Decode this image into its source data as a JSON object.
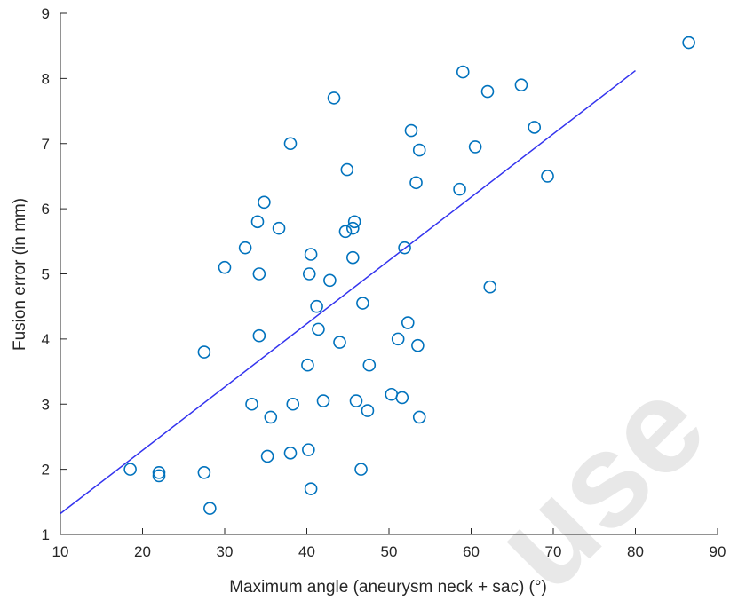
{
  "chart_data": {
    "type": "scatter",
    "xlabel": "Maximum angle (aneurysm neck + sac) (°)",
    "ylabel": "Fusion error (in mm)",
    "xlim": [
      10,
      90
    ],
    "ylim": [
      1,
      9
    ],
    "xticks": [
      "10",
      "20",
      "30",
      "40",
      "50",
      "60",
      "70",
      "80",
      "90"
    ],
    "yticks": [
      "1",
      "2",
      "3",
      "4",
      "5",
      "6",
      "7",
      "8",
      "9"
    ],
    "grid": false,
    "legend": "none",
    "marker_color": "#0072BD",
    "line_color": "#3333EE",
    "points": [
      {
        "x": 18.5,
        "y": 2.0
      },
      {
        "x": 22.0,
        "y": 1.95
      },
      {
        "x": 22.0,
        "y": 1.9
      },
      {
        "x": 27.5,
        "y": 1.95
      },
      {
        "x": 27.5,
        "y": 3.8
      },
      {
        "x": 28.2,
        "y": 1.4
      },
      {
        "x": 30.0,
        "y": 5.1
      },
      {
        "x": 32.5,
        "y": 5.4
      },
      {
        "x": 33.3,
        "y": 3.0
      },
      {
        "x": 34.0,
        "y": 5.8
      },
      {
        "x": 34.2,
        "y": 5.0
      },
      {
        "x": 34.2,
        "y": 4.05
      },
      {
        "x": 34.8,
        "y": 6.1
      },
      {
        "x": 35.2,
        "y": 2.2
      },
      {
        "x": 35.6,
        "y": 2.8
      },
      {
        "x": 36.6,
        "y": 5.7
      },
      {
        "x": 38.0,
        "y": 7.0
      },
      {
        "x": 38.0,
        "y": 2.25
      },
      {
        "x": 38.3,
        "y": 3.0
      },
      {
        "x": 40.1,
        "y": 3.6
      },
      {
        "x": 40.2,
        "y": 2.3
      },
      {
        "x": 40.3,
        "y": 5.0
      },
      {
        "x": 40.5,
        "y": 5.3
      },
      {
        "x": 40.5,
        "y": 1.7
      },
      {
        "x": 41.2,
        "y": 4.5
      },
      {
        "x": 41.4,
        "y": 4.15
      },
      {
        "x": 42.0,
        "y": 3.05
      },
      {
        "x": 42.8,
        "y": 4.9
      },
      {
        "x": 43.3,
        "y": 7.7
      },
      {
        "x": 44.0,
        "y": 3.95
      },
      {
        "x": 44.7,
        "y": 5.65
      },
      {
        "x": 44.9,
        "y": 6.6
      },
      {
        "x": 45.6,
        "y": 5.25
      },
      {
        "x": 45.6,
        "y": 5.7
      },
      {
        "x": 45.8,
        "y": 5.8
      },
      {
        "x": 46.0,
        "y": 3.05
      },
      {
        "x": 46.6,
        "y": 2.0
      },
      {
        "x": 46.8,
        "y": 4.55
      },
      {
        "x": 47.4,
        "y": 2.9
      },
      {
        "x": 47.6,
        "y": 3.6
      },
      {
        "x": 50.3,
        "y": 3.15
      },
      {
        "x": 51.1,
        "y": 4.0
      },
      {
        "x": 51.6,
        "y": 3.1
      },
      {
        "x": 51.9,
        "y": 5.4
      },
      {
        "x": 52.3,
        "y": 4.25
      },
      {
        "x": 52.7,
        "y": 7.2
      },
      {
        "x": 53.3,
        "y": 6.4
      },
      {
        "x": 53.5,
        "y": 3.9
      },
      {
        "x": 53.7,
        "y": 6.9
      },
      {
        "x": 53.7,
        "y": 2.8
      },
      {
        "x": 58.6,
        "y": 6.3
      },
      {
        "x": 59.0,
        "y": 8.1
      },
      {
        "x": 60.5,
        "y": 6.95
      },
      {
        "x": 62.0,
        "y": 7.8
      },
      {
        "x": 62.3,
        "y": 4.8
      },
      {
        "x": 66.1,
        "y": 7.9
      },
      {
        "x": 67.7,
        "y": 7.25
      },
      {
        "x": 69.3,
        "y": 6.5
      },
      {
        "x": 86.5,
        "y": 8.55
      }
    ],
    "fit_line": {
      "x": [
        10,
        80
      ],
      "y": [
        1.32,
        8.12
      ]
    }
  },
  "watermark": "use"
}
